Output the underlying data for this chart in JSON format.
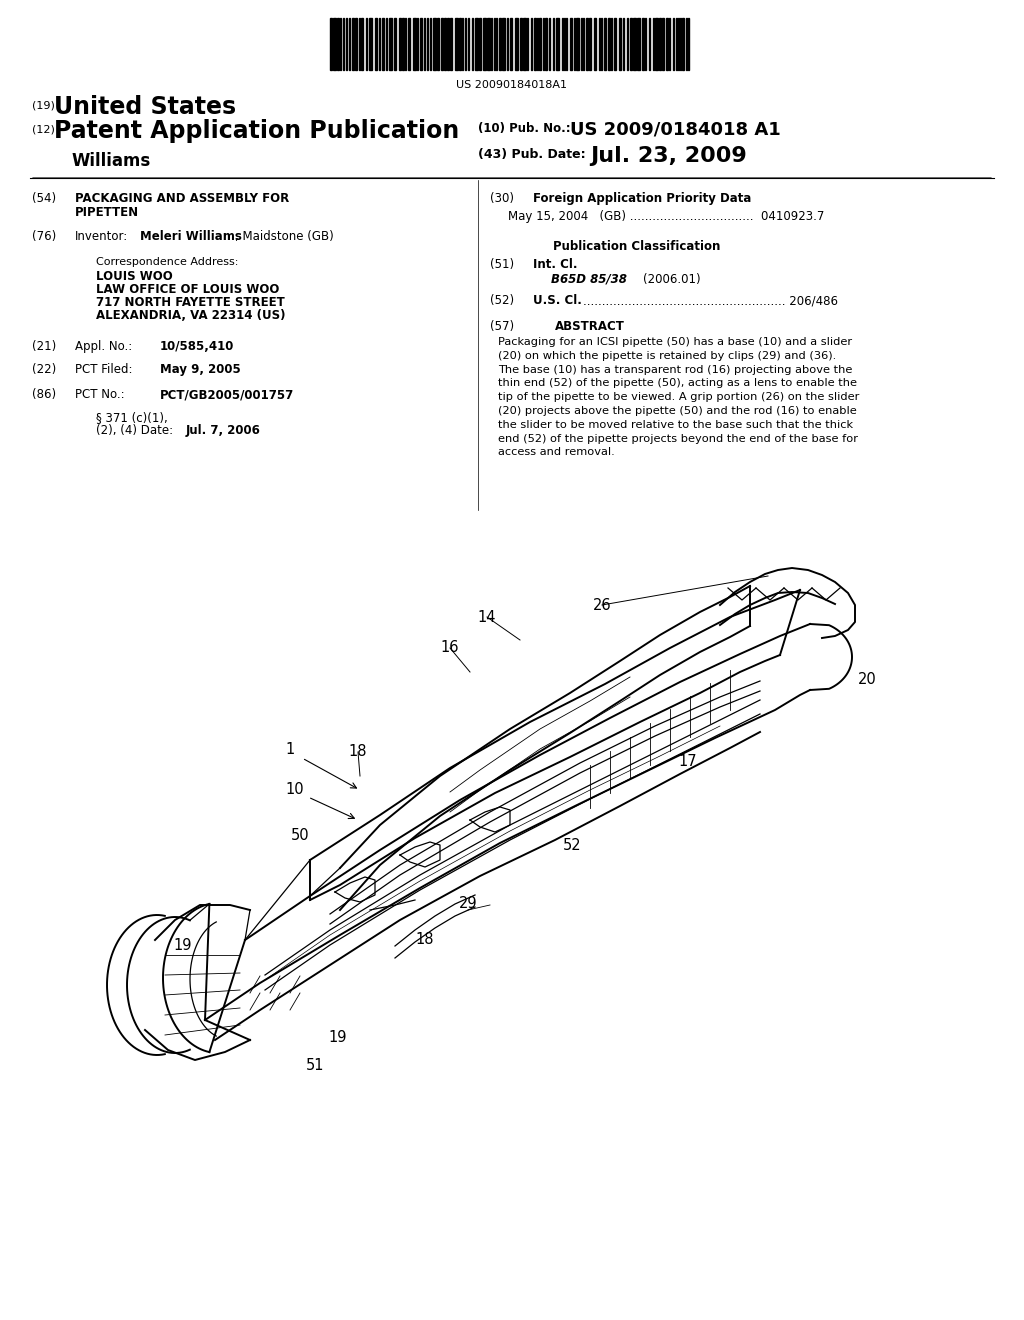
{
  "bg_color": "#ffffff",
  "barcode_text": "US 20090184018A1",
  "title_19": "(19)",
  "title_country": "United States",
  "title_12": "(12)",
  "title_type": "Patent Application Publication",
  "title_inventor_surname": "Williams",
  "pub_no_label": "(10) Pub. No.:",
  "pub_no_value": "US 2009/0184018 A1",
  "pub_date_label": "(43) Pub. Date:",
  "pub_date_value": "Jul. 23, 2009",
  "field54_label": "(54)",
  "field54_title_line1": "PACKAGING AND ASSEMBLY FOR",
  "field54_title_line2": "PIPETTEN",
  "field76_label": "(76)",
  "field76_key": "Inventor:",
  "field76_name": "Meleri Williams",
  "field76_rest": ", Maidstone (GB)",
  "corr_label": "Correspondence Address:",
  "corr_line1": "LOUIS WOO",
  "corr_line2": "LAW OFFICE OF LOUIS WOO",
  "corr_line3": "717 NORTH FAYETTE STREET",
  "corr_line4": "ALEXANDRIA, VA 22314 (US)",
  "field21_label": "(21)",
  "field21_key": "Appl. No.:",
  "field21_value": "10/585,410",
  "field22_label": "(22)",
  "field22_key": "PCT Filed:",
  "field22_value": "May 9, 2005",
  "field86_label": "(86)",
  "field86_key": "PCT No.:",
  "field86_value": "PCT/GB2005/001757",
  "field86b_line1": "§ 371 (c)(1),",
  "field86b_line2": "(2), (4) Date:",
  "field86b_value": "Jul. 7, 2006",
  "field30_label": "(30)",
  "field30_title": "Foreign Application Priority Data",
  "field30_data": "May 15, 2004   (GB) .................................  0410923.7",
  "pub_class_title": "Publication Classification",
  "field51_label": "(51)",
  "field51_key": "Int. Cl.",
  "field51_class": "B65D 85/38",
  "field51_year": "(2006.01)",
  "field52_label": "(52)",
  "field52_key": "U.S. Cl.",
  "field52_dots_value": "...................................................... 206/486",
  "field57_label": "(57)",
  "field57_title": "ABSTRACT",
  "abstract_text": "Packaging for an ICSI pipette (50) has a base (10) and a slider\n(20) on which the pipette is retained by clips (29) and (36).\nThe base (10) has a transparent rod (16) projecting above the\nthin end (52) of the pipette (50), acting as a lens to enable the\ntip of the pipette to be viewed. A grip portion (26) on the slider\n(20) projects above the pipette (50) and the rod (16) to enable\nthe slider to be moved relative to the base such that the thick\nend (52) of the pipette projects beyond the end of the base for\naccess and removal."
}
